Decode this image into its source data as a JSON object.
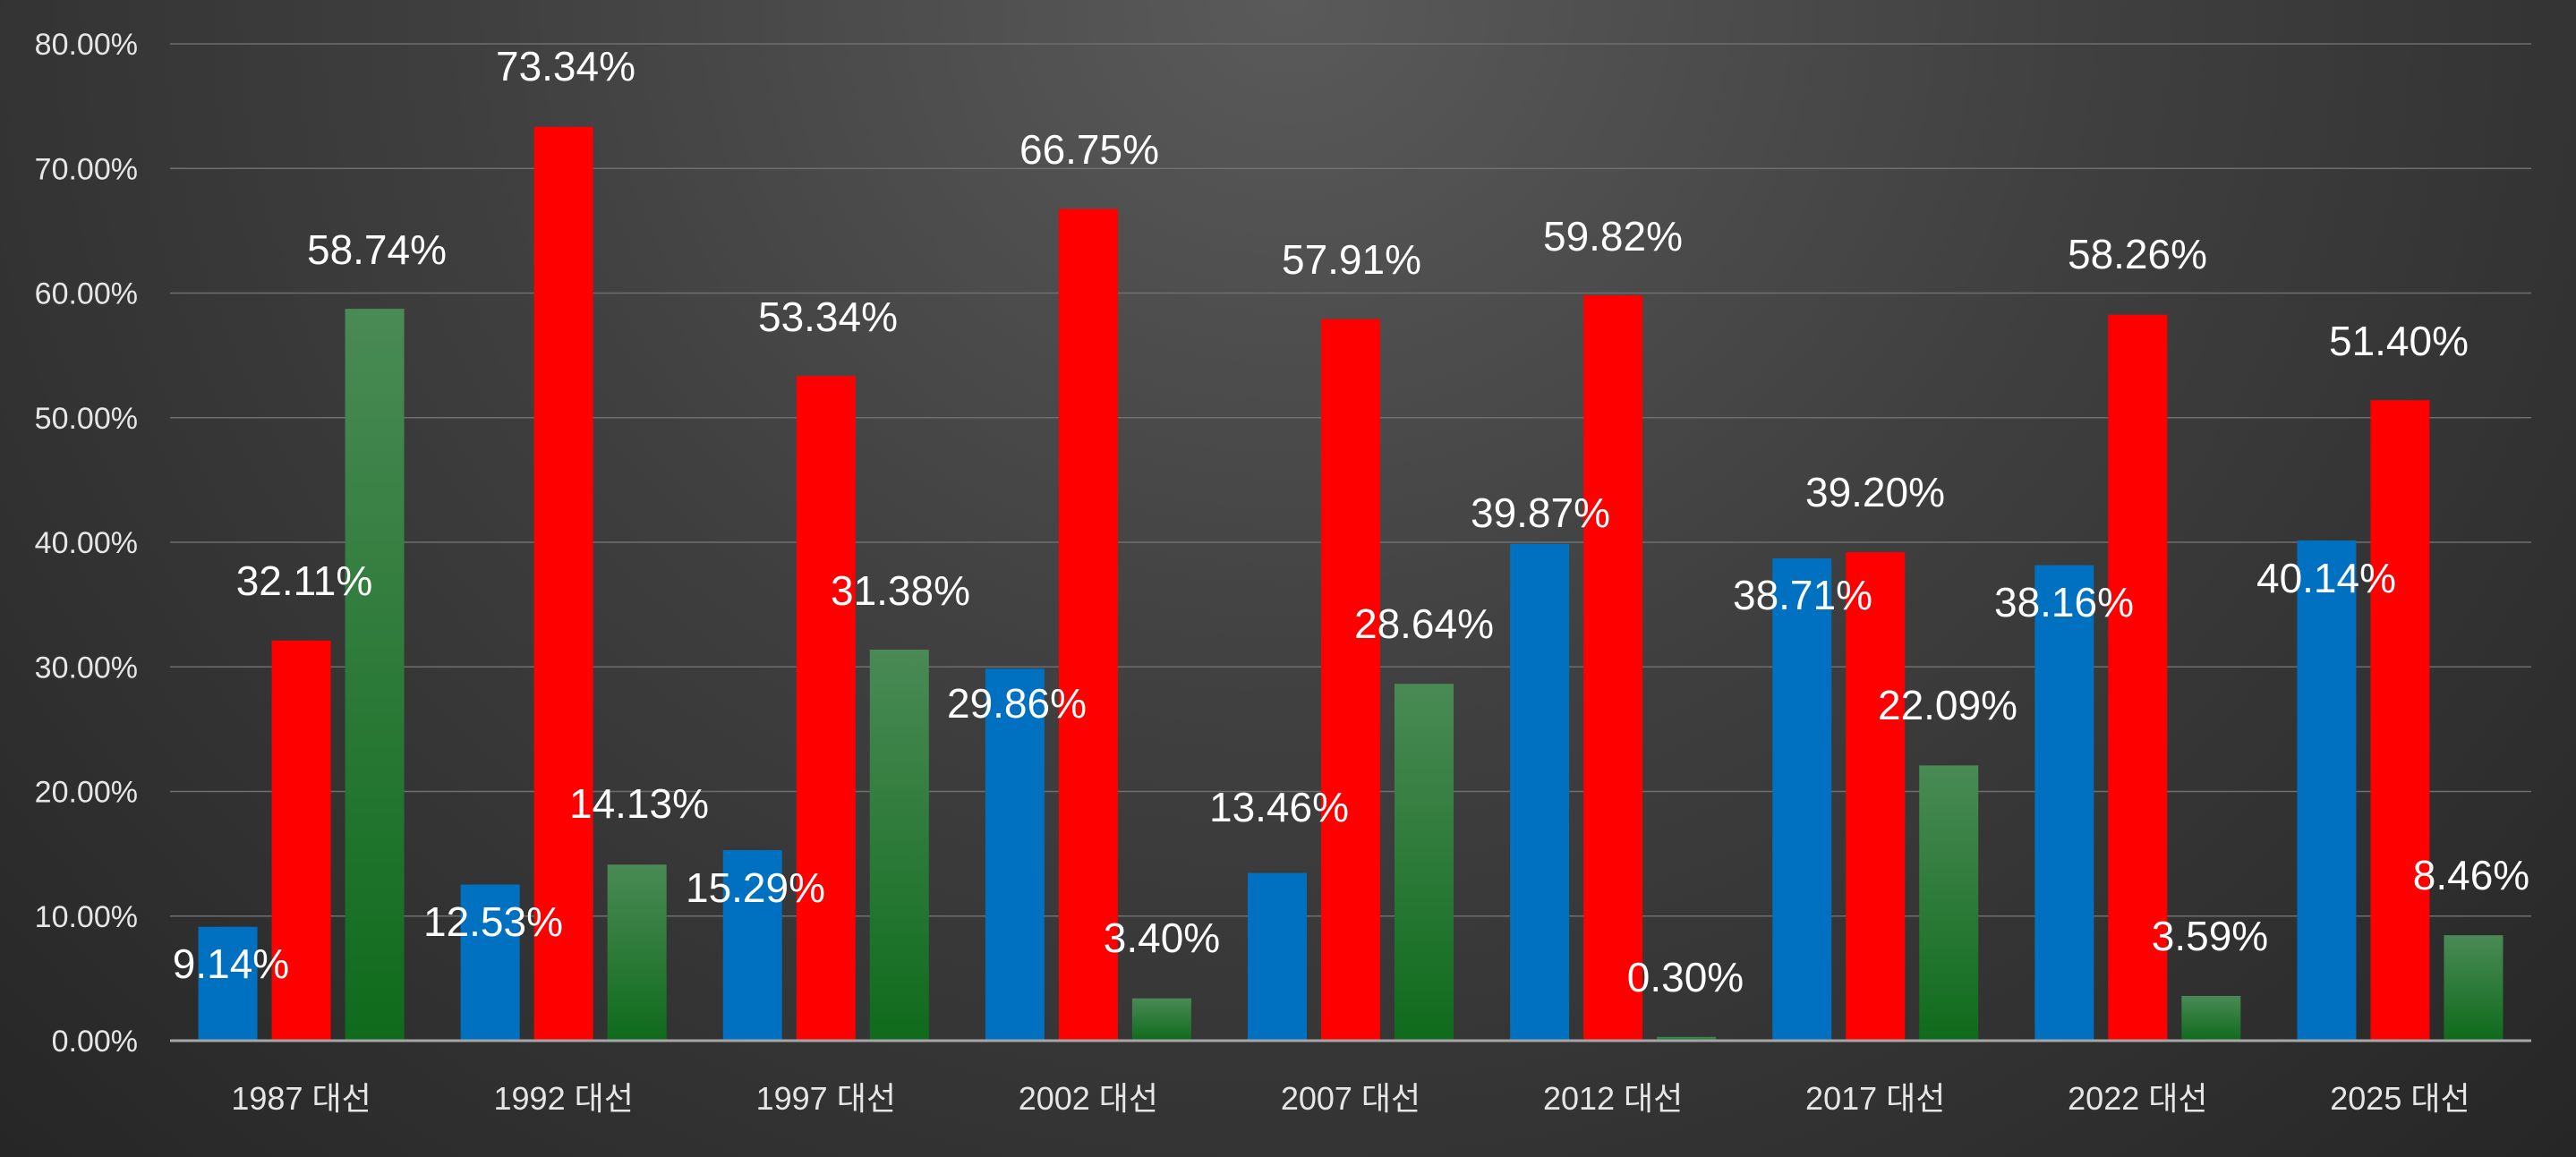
{
  "chart_data": {
    "type": "bar",
    "categories": [
      "1987 대선",
      "1992 대선",
      "1997 대선",
      "2002 대선",
      "2007 대선",
      "2012 대선",
      "2017 대선",
      "2022 대선",
      "2025 대선"
    ],
    "series": [
      {
        "color": "#0070c0",
        "values": [
          9.14,
          12.53,
          15.29,
          29.86,
          13.46,
          39.87,
          38.71,
          38.16,
          40.14
        ],
        "labels": [
          "9.14%",
          "12.53%",
          "15.29%",
          "29.86%",
          "13.46%",
          "39.87%",
          "38.71%",
          "38.16%",
          "40.14%"
        ]
      },
      {
        "color": "#ff0000",
        "values": [
          32.11,
          73.34,
          53.34,
          66.75,
          57.91,
          59.82,
          39.2,
          58.26,
          51.4
        ],
        "labels": [
          "32.11%",
          "73.34%",
          "53.34%",
          "66.75%",
          "57.91%",
          "59.82%",
          "39.20%",
          "58.26%",
          "51.40%"
        ]
      },
      {
        "color": "#1a7a2a",
        "values": [
          58.74,
          14.13,
          31.38,
          3.4,
          28.64,
          0.3,
          22.09,
          3.59,
          8.46
        ],
        "labels": [
          "58.74%",
          "14.13%",
          "31.38%",
          "3.40%",
          "28.64%",
          "0.30%",
          "22.09%",
          "3.59%",
          "8.46%"
        ]
      }
    ],
    "ylim": [
      0,
      80
    ],
    "yticks": [
      "0.00%",
      "10.00%",
      "20.00%",
      "30.00%",
      "40.00%",
      "50.00%",
      "60.00%",
      "70.00%",
      "80.00%"
    ],
    "grid": true,
    "legend": "none",
    "title": "",
    "xlabel": "",
    "ylabel": ""
  }
}
